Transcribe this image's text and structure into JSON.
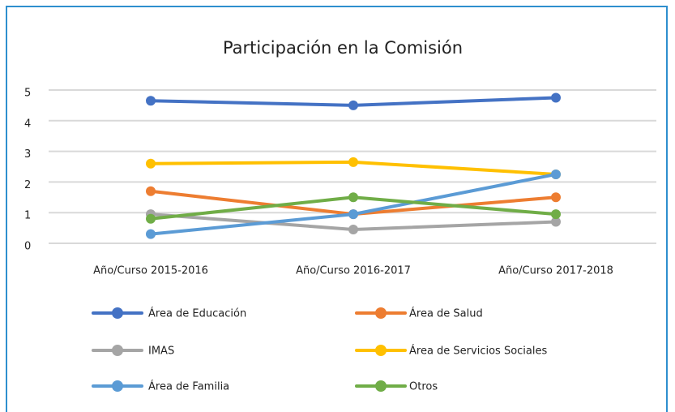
{
  "chart_data": {
    "type": "line",
    "title": "Participación en la Comisión",
    "categories": [
      "Año/Curso 2015-2016",
      "Año/Curso 2016-2017",
      "Año/Curso 2017-2018"
    ],
    "series": [
      {
        "name": "Área de Educación",
        "color": "#4472c4",
        "values": [
          4.65,
          4.5,
          4.75
        ]
      },
      {
        "name": "Área de Salud",
        "color": "#ed7d31",
        "values": [
          1.7,
          0.95,
          1.5
        ]
      },
      {
        "name": "IMAS",
        "color": "#a5a5a5",
        "values": [
          0.95,
          0.45,
          0.7
        ]
      },
      {
        "name": "Área de Servicios Sociales",
        "color": "#ffc000",
        "values": [
          2.6,
          2.65,
          2.25
        ]
      },
      {
        "name": "Área de Familia",
        "color": "#5b9bd5",
        "values": [
          0.3,
          0.95,
          2.25
        ]
      },
      {
        "name": "Otros",
        "color": "#70ad47",
        "values": [
          0.8,
          1.5,
          0.95
        ]
      }
    ],
    "ylim": [
      0,
      5
    ],
    "yticks": [
      0,
      1,
      2,
      3,
      4,
      5
    ],
    "grid": true,
    "legend": "bottom"
  }
}
